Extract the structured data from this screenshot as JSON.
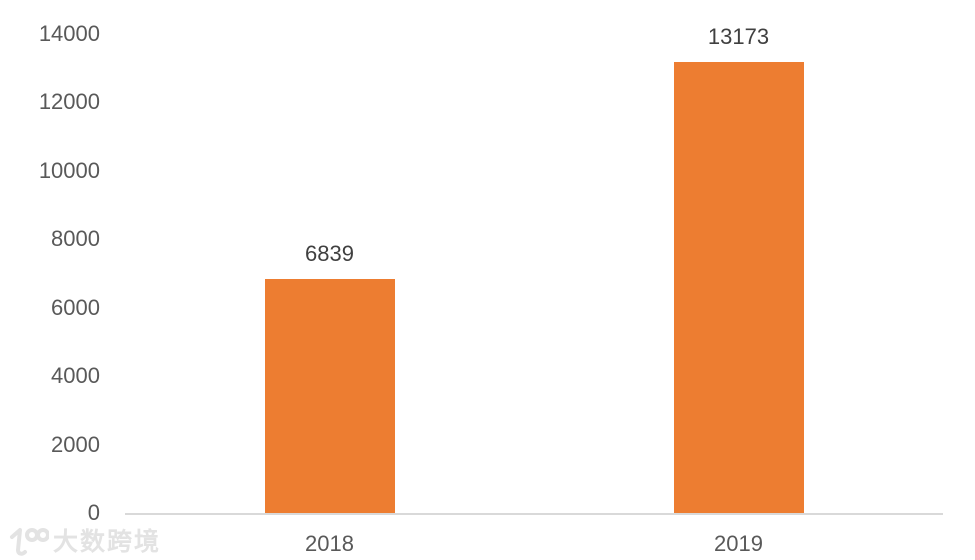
{
  "chart_data": {
    "type": "bar",
    "categories": [
      "2018",
      "2019"
    ],
    "values": [
      6839,
      13173
    ],
    "data_labels": [
      "6839",
      "13173"
    ],
    "title": "",
    "xlabel": "",
    "ylabel": "",
    "ylim": [
      0,
      14000
    ],
    "y_tick_step": 2000,
    "y_tick_labels": [
      "0",
      "2000",
      "4000",
      "6000",
      "8000",
      "10000",
      "12000",
      "14000"
    ],
    "grid": false,
    "legend": "none",
    "bar_color": "#ED7D31",
    "data_label_color": "#404040",
    "axis_label_color": "#595959",
    "axis_line_color": "#D9D9D9"
  },
  "watermark": {
    "text": "大数跨境",
    "logo": "100-logo-icon",
    "color": "#E3E3E3"
  }
}
